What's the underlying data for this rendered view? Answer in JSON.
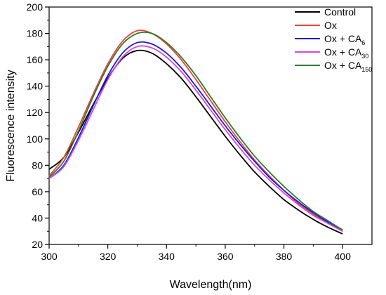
{
  "chart_data": {
    "type": "line",
    "xlabel": "Wavelength(nm)",
    "ylabel": "Fluorescence intensity",
    "xlim": [
      300,
      410
    ],
    "ylim": [
      20,
      200
    ],
    "xticks": [
      300,
      320,
      340,
      360,
      380,
      400
    ],
    "yticks": [
      20,
      40,
      60,
      80,
      100,
      120,
      140,
      160,
      180,
      200
    ],
    "grid": false,
    "legend_position": "top-right",
    "series": [
      {
        "name": "Control",
        "name_main": "Control",
        "name_sub": "",
        "color": "#000000",
        "x": [
          300,
          305,
          310,
          315,
          320,
          325,
          330,
          335,
          340,
          345,
          350,
          355,
          360,
          365,
          370,
          375,
          380,
          385,
          390,
          395,
          400
        ],
        "y": [
          77,
          86,
          105,
          126,
          146,
          161,
          167,
          165,
          157,
          146,
          132,
          117,
          102,
          88,
          75,
          64,
          54,
          46,
          39,
          33,
          28
        ]
      },
      {
        "name": "Ox",
        "name_main": "Ox",
        "name_sub": "",
        "color": "#e8453c",
        "x": [
          300,
          305,
          310,
          315,
          320,
          325,
          330,
          335,
          340,
          345,
          350,
          355,
          360,
          365,
          370,
          375,
          380,
          385,
          390,
          395,
          400
        ],
        "y": [
          72,
          86,
          109,
          134,
          157,
          174,
          182,
          180,
          172,
          160,
          145,
          129,
          113,
          98,
          84,
          72,
          61,
          51,
          43,
          36,
          30
        ]
      },
      {
        "name": "Ox + CA6",
        "name_main": "Ox + CA",
        "name_sub": "6",
        "color": "#1a1adc",
        "x": [
          300,
          305,
          310,
          315,
          320,
          325,
          330,
          335,
          340,
          345,
          350,
          355,
          360,
          365,
          370,
          375,
          380,
          385,
          390,
          395,
          400
        ],
        "y": [
          70,
          80,
          101,
          125,
          148,
          165,
          173,
          172,
          165,
          154,
          140,
          125,
          110,
          96,
          83,
          71,
          61,
          52,
          44,
          37,
          31
        ]
      },
      {
        "name": "Ox + CA30",
        "name_main": "Ox + CA",
        "name_sub": "30",
        "color": "#d946d9",
        "x": [
          300,
          305,
          310,
          315,
          320,
          325,
          330,
          335,
          340,
          345,
          350,
          355,
          360,
          365,
          370,
          375,
          380,
          385,
          390,
          395,
          400
        ],
        "y": [
          70,
          79,
          99,
          122,
          145,
          162,
          170,
          169,
          162,
          151,
          137,
          122,
          107,
          93,
          80,
          69,
          59,
          50,
          42,
          36,
          30
        ]
      },
      {
        "name": "Ox + CA150",
        "name_main": "Ox  + CA",
        "name_sub": "150",
        "color": "#2f7a2f",
        "x": [
          300,
          305,
          310,
          315,
          320,
          325,
          330,
          335,
          340,
          345,
          350,
          355,
          360,
          365,
          370,
          375,
          380,
          385,
          390,
          395,
          400
        ],
        "y": [
          71,
          83,
          106,
          132,
          155,
          172,
          180,
          180,
          173,
          162,
          148,
          132,
          116,
          101,
          87,
          75,
          64,
          54,
          45,
          38,
          31
        ]
      }
    ]
  }
}
